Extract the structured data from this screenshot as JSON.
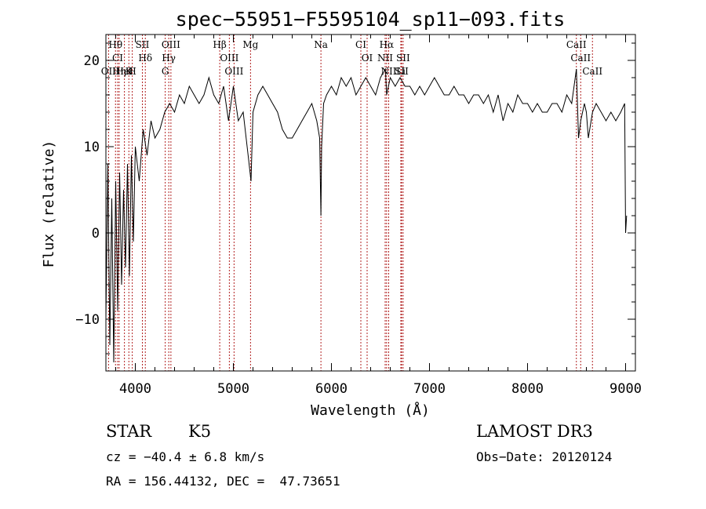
{
  "chart_data": {
    "type": "line",
    "title": "spec−55951−F5595104_sp11−093.fits",
    "xlabel": "Wavelength (Å)",
    "ylabel": "Flux (relative)",
    "xlim": [
      3700,
      9100
    ],
    "ylim": [
      -16,
      23
    ],
    "xticks": [
      4000,
      5000,
      6000,
      7000,
      8000,
      9000
    ],
    "yticks": [
      -10,
      0,
      10,
      20
    ],
    "ytick_labels": [
      "−10",
      "0",
      "10",
      "20"
    ],
    "grid": false,
    "series": [
      {
        "x": [
          3700,
          3720,
          3740,
          3760,
          3780,
          3800,
          3820,
          3840,
          3860,
          3880,
          3900,
          3920,
          3940,
          3960,
          3980,
          4000,
          4040,
          4080,
          4120,
          4160,
          4200,
          4250,
          4300,
          4350,
          4400,
          4450,
          4500,
          4550,
          4600,
          4650,
          4700,
          4750,
          4800,
          4850,
          4900,
          4950,
          5000,
          5050,
          5100,
          5150,
          5180,
          5200,
          5250,
          5300,
          5350,
          5400,
          5450,
          5500,
          5550,
          5600,
          5650,
          5700,
          5750,
          5800,
          5850,
          5880,
          5893,
          5900,
          5920,
          5950,
          6000,
          6050,
          6100,
          6150,
          6200,
          6250,
          6300,
          6350,
          6400,
          6450,
          6500,
          6550,
          6563,
          6600,
          6650,
          6700,
          6750,
          6800,
          6850,
          6900,
          6950,
          7000,
          7050,
          7100,
          7150,
          7200,
          7250,
          7300,
          7350,
          7400,
          7450,
          7500,
          7550,
          7600,
          7650,
          7700,
          7750,
          7800,
          7850,
          7900,
          7950,
          8000,
          8050,
          8100,
          8150,
          8200,
          8250,
          8300,
          8350,
          8400,
          8450,
          8498,
          8520,
          8542,
          8580,
          8600,
          8620,
          8662,
          8700,
          8750,
          8800,
          8850,
          8900,
          8950,
          8990,
          9000,
          9010
        ],
        "y": [
          -10,
          8,
          -13,
          4,
          -15,
          6,
          -9,
          7,
          -6,
          5,
          -4,
          8,
          -5,
          9,
          -1,
          10,
          6,
          12,
          9,
          13,
          11,
          12,
          14,
          15,
          14,
          16,
          15,
          17,
          16,
          15,
          16,
          18,
          16,
          15,
          17,
          13,
          17,
          13,
          14,
          9,
          6,
          14,
          16,
          17,
          16,
          15,
          14,
          12,
          11,
          11,
          12,
          13,
          14,
          15,
          13,
          11,
          2,
          10,
          15,
          16,
          17,
          16,
          18,
          17,
          18,
          16,
          17,
          18,
          17,
          16,
          18,
          19,
          16,
          18,
          17,
          18,
          17,
          17,
          16,
          17,
          16,
          17,
          18,
          17,
          16,
          16,
          17,
          16,
          16,
          15,
          16,
          16,
          15,
          16,
          14,
          16,
          13,
          15,
          14,
          16,
          15,
          15,
          14,
          15,
          14,
          14,
          15,
          15,
          14,
          16,
          15,
          19,
          11,
          13,
          15,
          14,
          11,
          14,
          15,
          14,
          13,
          14,
          13,
          14,
          15,
          0,
          2
        ]
      }
    ],
    "lines": [
      {
        "name": "Hθ",
        "x": 3798
      },
      {
        "name": "CI",
        "x": 3820
      },
      {
        "name": "OII",
        "x": 3727
      },
      {
        "name": "Hη",
        "x": 3835
      },
      {
        "name": "K",
        "x": 3934
      },
      {
        "name": "HeI",
        "x": 3889
      },
      {
        "name": "H",
        "x": 3969
      },
      {
        "name": "SII",
        "x": 4072
      },
      {
        "name": "Hδ",
        "x": 4102
      },
      {
        "name": "OIII",
        "x": 4363
      },
      {
        "name": "Hγ",
        "x": 4341
      },
      {
        "name": "G",
        "x": 4305
      },
      {
        "name": "Hβ",
        "x": 4861
      },
      {
        "name": "OIII",
        "x": 4959
      },
      {
        "name": "OIII",
        "x": 5007
      },
      {
        "name": "Mg",
        "x": 5175
      },
      {
        "name": "Na",
        "x": 5893
      },
      {
        "name": "CI",
        "x": 6300
      },
      {
        "name": "OI",
        "x": 6364
      },
      {
        "name": "Hα",
        "x": 6563
      },
      {
        "name": "NII",
        "x": 6548
      },
      {
        "name": "NII",
        "x": 6584
      },
      {
        "name": "SII",
        "x": 6716
      },
      {
        "name": "Li",
        "x": 6708
      },
      {
        "name": "SII",
        "x": 6731
      },
      {
        "name": "CaII",
        "x": 8498
      },
      {
        "name": "CaII",
        "x": 8542
      },
      {
        "name": "CaII",
        "x": 8662
      }
    ]
  },
  "info": {
    "object_class": "STAR",
    "subclass": "K5",
    "survey": "LAMOST DR3",
    "cz": "cz = −40.4 ± 6.8 km/s",
    "obs_date": "Obs−Date: 20120124",
    "coords": "RA = 156.44132, DEC =  47.73651"
  },
  "colors": {
    "spectrum": "#000000",
    "line_markers": "#b22222",
    "axes": "#000000",
    "background": "#ffffff"
  }
}
